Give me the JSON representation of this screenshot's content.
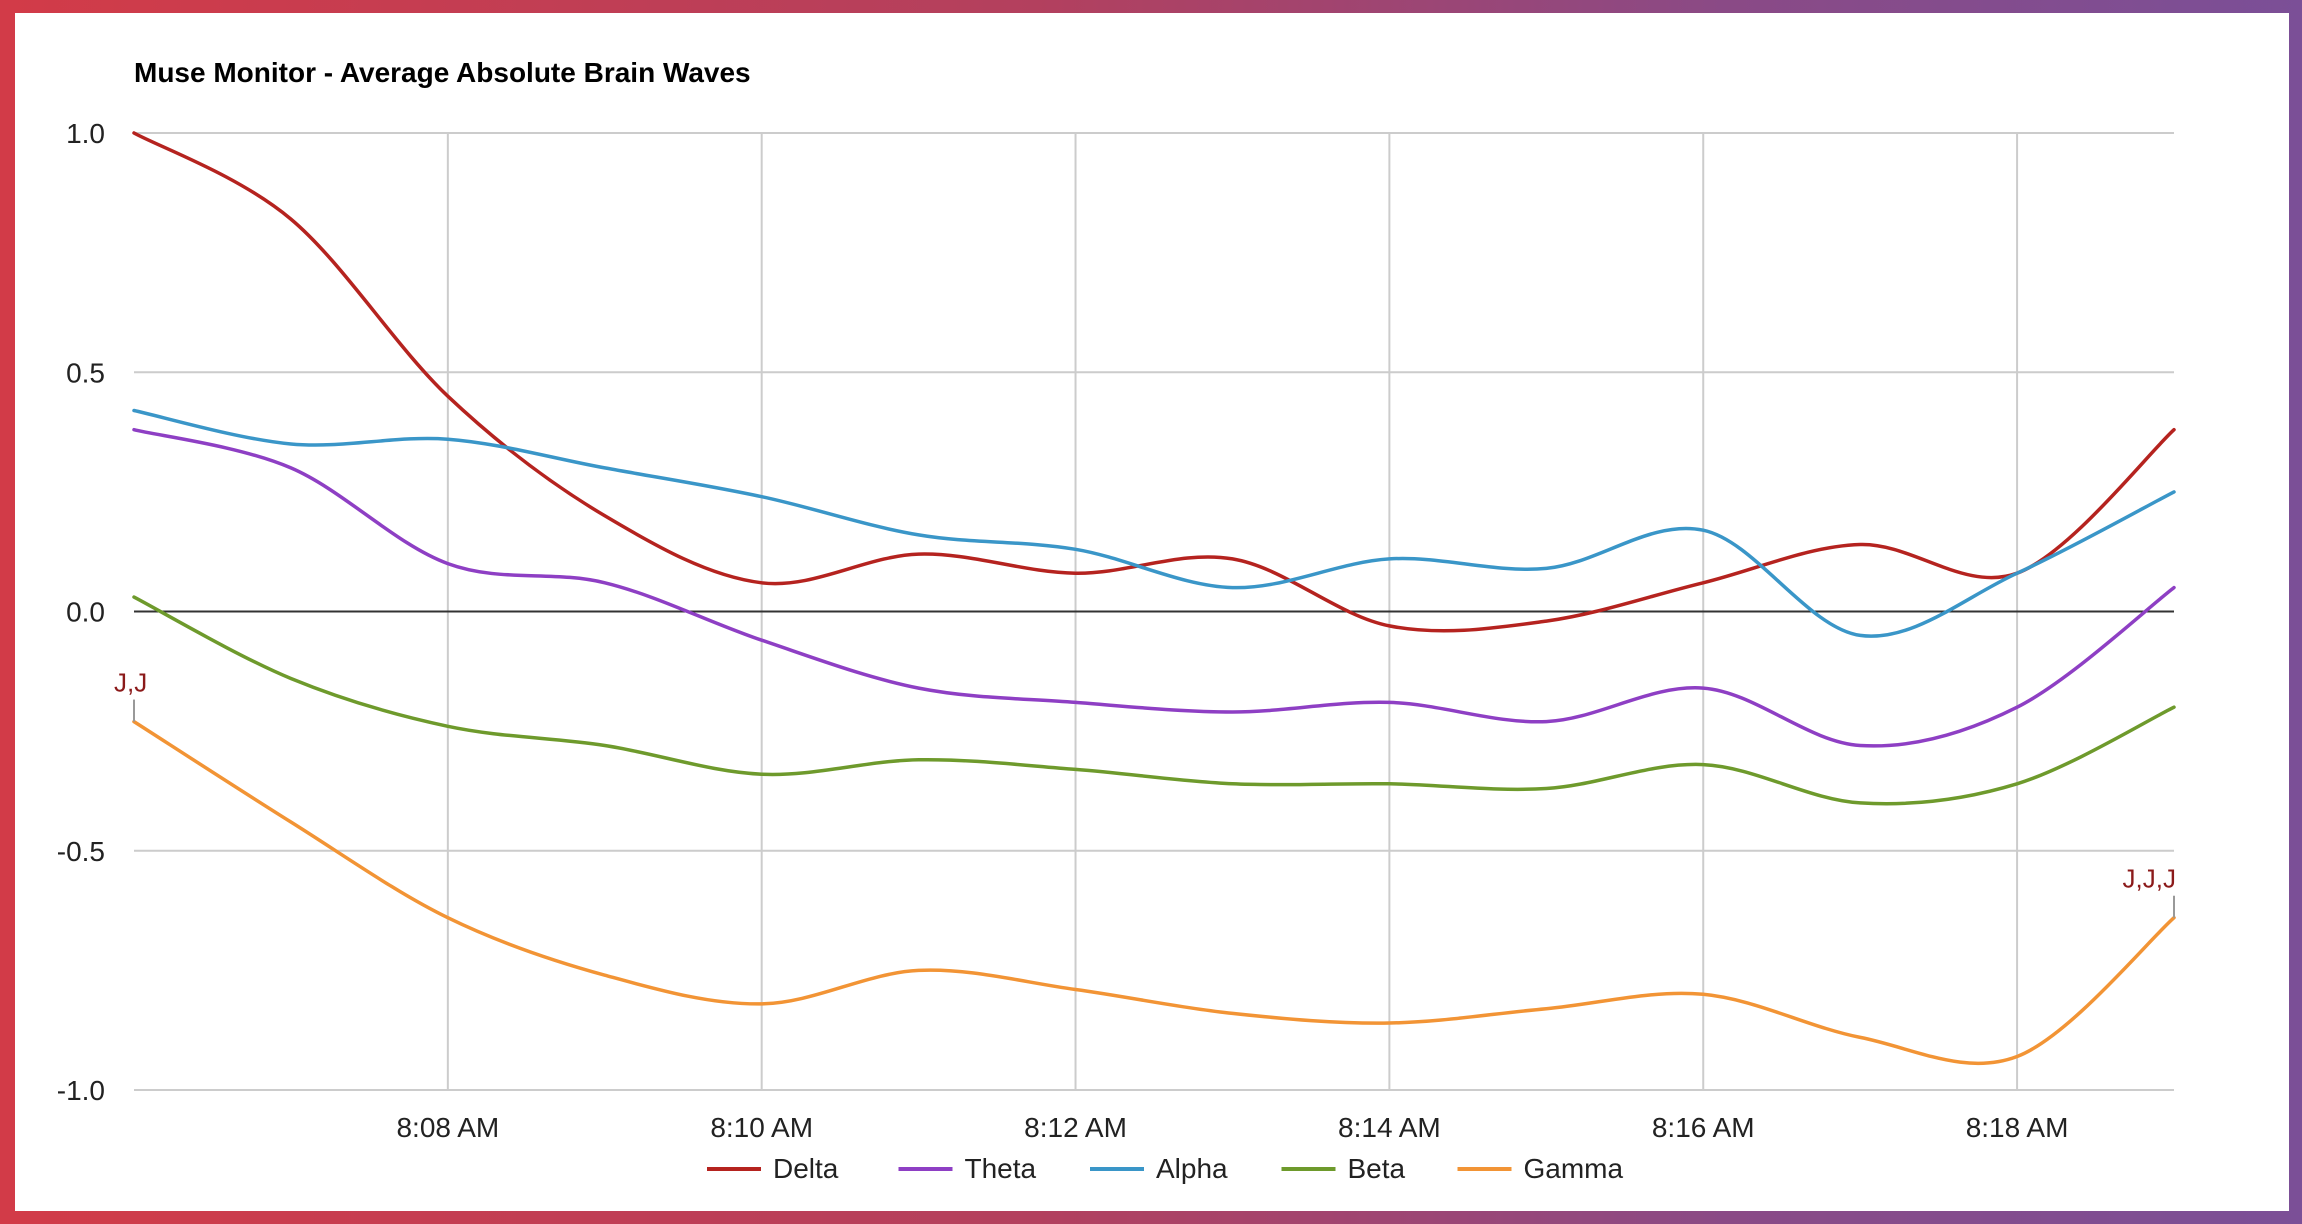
{
  "chart_data": {
    "type": "line",
    "title": "Muse Monitor - Average Absolute Brain Waves",
    "xlabel": "",
    "ylabel": "",
    "x_minutes": [
      6,
      7,
      8,
      9,
      10,
      11,
      12,
      13,
      14,
      15,
      16,
      17,
      18,
      19
    ],
    "xlim": [
      6,
      19
    ],
    "x_ticks": [
      {
        "value": 8,
        "label": "8:08 AM"
      },
      {
        "value": 10,
        "label": "8:10 AM"
      },
      {
        "value": 12,
        "label": "8:12 AM"
      },
      {
        "value": 14,
        "label": "8:14 AM"
      },
      {
        "value": 16,
        "label": "8:16 AM"
      },
      {
        "value": 18,
        "label": "8:18 AM"
      }
    ],
    "ylim": [
      -1.0,
      1.0
    ],
    "y_ticks": [
      {
        "value": 1.0,
        "label": "1.0"
      },
      {
        "value": 0.5,
        "label": "0.5"
      },
      {
        "value": 0.0,
        "label": "0.0"
      },
      {
        "value": -0.5,
        "label": "-0.5"
      },
      {
        "value": -1.0,
        "label": "-1.0"
      }
    ],
    "grid": true,
    "legend_position": "bottom",
    "series": [
      {
        "name": "Delta",
        "color": "#b5231f",
        "values": [
          1.0,
          0.82,
          0.45,
          0.2,
          0.06,
          0.12,
          0.08,
          0.11,
          -0.03,
          -0.02,
          0.06,
          0.14,
          0.08,
          0.38
        ]
      },
      {
        "name": "Theta",
        "color": "#8e3fc4",
        "values": [
          0.38,
          0.3,
          0.1,
          0.06,
          -0.06,
          -0.16,
          -0.19,
          -0.21,
          -0.19,
          -0.23,
          -0.16,
          -0.28,
          -0.2,
          0.05
        ]
      },
      {
        "name": "Alpha",
        "color": "#3a96c8",
        "values": [
          0.42,
          0.35,
          0.36,
          0.3,
          0.24,
          0.16,
          0.13,
          0.05,
          0.11,
          0.09,
          0.17,
          -0.05,
          0.08,
          0.25
        ]
      },
      {
        "name": "Beta",
        "color": "#6e9a2c",
        "values": [
          0.03,
          -0.14,
          -0.24,
          -0.28,
          -0.34,
          -0.31,
          -0.33,
          -0.36,
          -0.36,
          -0.37,
          -0.32,
          -0.4,
          -0.36,
          -0.2
        ]
      },
      {
        "name": "Gamma",
        "color": "#f29435",
        "values": [
          -0.23,
          -0.44,
          -0.64,
          -0.76,
          -0.82,
          -0.75,
          -0.79,
          -0.84,
          -0.86,
          -0.83,
          -0.8,
          -0.89,
          -0.93,
          -0.64
        ]
      }
    ],
    "annotations": [
      {
        "x": 6,
        "series": "Gamma",
        "text": "J,J"
      },
      {
        "x": 19,
        "series": "Gamma",
        "text": "J,J,J"
      }
    ]
  }
}
